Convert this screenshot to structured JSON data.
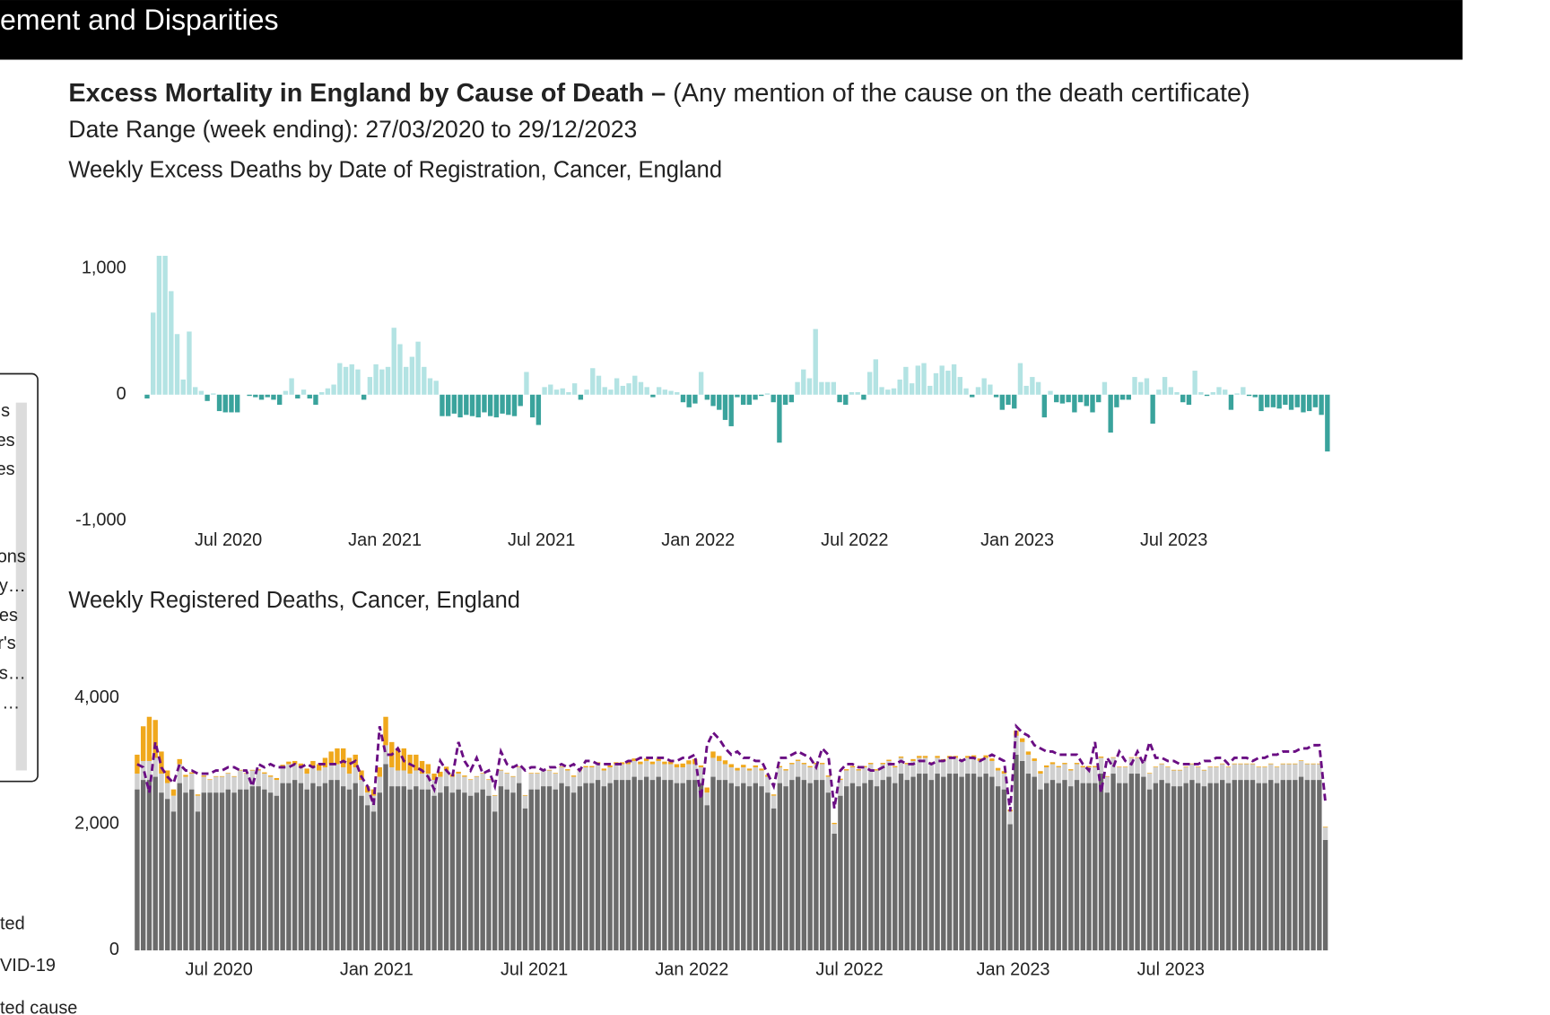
{
  "header": {
    "title": "ement and Disparities"
  },
  "report": {
    "title_bold": "Excess Mortality in England by Cause of Death –",
    "title_rest": "(Any mention of the cause on the death certificate)",
    "date_range": "Date Range (week ending): 27/03/2020 to 29/12/2023"
  },
  "sidebar": {
    "legend_fragments": [
      "s",
      "es",
      "es",
      "ons",
      "y…",
      "es",
      "r's",
      "s…",
      "…"
    ],
    "footer_fragments": [
      "ted",
      "VID-19",
      "ted cause"
    ]
  },
  "chart_data": [
    {
      "type": "bar",
      "title": "Weekly Excess Deaths by Date of Registration, Cancer, England",
      "color_positive": "#b3e3e3",
      "color_negative": "#3aa39c",
      "xlim": [
        0,
        197
      ],
      "xticks": [
        {
          "value": 14,
          "label": "Jul 2020"
        },
        {
          "value": 40,
          "label": "Jan 2021"
        },
        {
          "value": 66,
          "label": "Jul 2021"
        },
        {
          "value": 92,
          "label": "Jan 2022"
        },
        {
          "value": 118,
          "label": "Jul 2022"
        },
        {
          "value": 145,
          "label": "Jan 2023"
        },
        {
          "value": 171,
          "label": "Jul 2023"
        }
      ],
      "ylim": [
        -1000,
        1000
      ],
      "yticks": [
        {
          "value": -1000,
          "label": "-1,000"
        },
        0,
        {
          "value": 1000,
          "label": "1,000"
        }
      ],
      "values": [
        -30,
        650,
        1100,
        1100,
        820,
        480,
        120,
        500,
        60,
        30,
        -50,
        10,
        -130,
        -140,
        -140,
        -140,
        0,
        -10,
        -20,
        -40,
        -20,
        -40,
        -80,
        30,
        130,
        -30,
        40,
        -30,
        -80,
        20,
        50,
        80,
        250,
        220,
        240,
        200,
        -40,
        140,
        240,
        200,
        220,
        530,
        400,
        220,
        300,
        420,
        220,
        130,
        110,
        -170,
        -170,
        -150,
        -180,
        -160,
        -170,
        -180,
        -140,
        -170,
        -180,
        -150,
        -160,
        -170,
        -90,
        180,
        -180,
        -240,
        60,
        80,
        40,
        50,
        20,
        90,
        -40,
        40,
        210,
        150,
        60,
        40,
        130,
        70,
        90,
        150,
        100,
        60,
        -20,
        60,
        40,
        30,
        20,
        -60,
        -100,
        -70,
        180,
        -40,
        -90,
        -120,
        -200,
        -250,
        -20,
        -80,
        -80,
        -40,
        -10,
        10,
        -60,
        -380,
        -80,
        -60,
        100,
        200,
        130,
        520,
        100,
        100,
        100,
        -60,
        -80,
        20,
        20,
        -40,
        180,
        280,
        60,
        40,
        50,
        120,
        220,
        90,
        230,
        250,
        70,
        170,
        230,
        190,
        240,
        140,
        50,
        -20,
        60,
        130,
        80,
        -20,
        -120,
        -80,
        -110,
        250,
        70,
        140,
        100,
        -180,
        30,
        -60,
        -70,
        -60,
        -140,
        -60,
        -90,
        -140,
        -60,
        100,
        -300,
        -100,
        -40,
        -40,
        140,
        100,
        130,
        -230,
        40,
        140,
        60,
        20,
        -60,
        -80,
        190,
        20,
        -10,
        20,
        60,
        40,
        -120,
        10,
        60,
        -10,
        -20,
        -130,
        -100,
        -100,
        -110,
        -80,
        -120,
        -100,
        -140,
        -130,
        -100,
        -160,
        -450
      ]
    },
    {
      "type": "bar",
      "stacked": true,
      "title": "Weekly Registered Deaths, Cancer, England",
      "xlim": [
        0,
        197
      ],
      "xticks": [
        {
          "value": 14,
          "label": "Jul 2020"
        },
        {
          "value": 40,
          "label": "Jan 2021"
        },
        {
          "value": 66,
          "label": "Jul 2021"
        },
        {
          "value": 92,
          "label": "Jan 2022"
        },
        {
          "value": 118,
          "label": "Jul 2022"
        },
        {
          "value": 145,
          "label": "Jan 2023"
        },
        {
          "value": 171,
          "label": "Jul 2023"
        }
      ],
      "ylim": [
        0,
        4000
      ],
      "yticks": [
        0,
        {
          "value": 2000,
          "label": "2,000"
        },
        {
          "value": 4000,
          "label": "4,000"
        }
      ],
      "series": [
        {
          "color": "#6b6b6b",
          "values": [
            2550,
            2700,
            2700,
            2750,
            2500,
            2400,
            2200,
            2650,
            2500,
            2550,
            2200,
            2500,
            2500,
            2500,
            2500,
            2550,
            2500,
            2550,
            2550,
            2600,
            2600,
            2550,
            2500,
            2450,
            2650,
            2650,
            2700,
            2650,
            2550,
            2650,
            2600,
            2650,
            2700,
            2700,
            2600,
            2550,
            2650,
            2450,
            2300,
            2200,
            2500,
            2950,
            2600,
            2600,
            2600,
            2550,
            2600,
            2550,
            2550,
            2450,
            2500,
            2600,
            2500,
            2550,
            2500,
            2450,
            2500,
            2550,
            2450,
            2200,
            2600,
            2550,
            2500,
            2650,
            2250,
            2550,
            2550,
            2600,
            2600,
            2550,
            2650,
            2600,
            2500,
            2600,
            2650,
            2650,
            2700,
            2600,
            2650,
            2700,
            2700,
            2700,
            2750,
            2700,
            2750,
            2700,
            2750,
            2700,
            2700,
            2650,
            2650,
            2700,
            2700,
            2650,
            2300,
            2750,
            2700,
            2700,
            2650,
            2600,
            2650,
            2600,
            2650,
            2600,
            2500,
            2250,
            2650,
            2600,
            2700,
            2750,
            2700,
            2650,
            2700,
            2700,
            2500,
            1850,
            2450,
            2600,
            2650,
            2600,
            2650,
            2700,
            2600,
            2700,
            2750,
            2650,
            2800,
            2700,
            2750,
            2800,
            2800,
            2700,
            2800,
            2750,
            2800,
            2800,
            2750,
            2800,
            2800,
            2750,
            2800,
            2750,
            2600,
            2550,
            2000,
            3100,
            3000,
            2800,
            2750,
            2550,
            2650,
            2700,
            2650,
            2700,
            2600,
            2700,
            2650,
            2650,
            2650,
            2800,
            2500,
            2800,
            2650,
            2650,
            2800,
            2800,
            2750,
            2550,
            2650,
            2700,
            2650,
            2600,
            2600,
            2650,
            2700,
            2650,
            2600,
            2650,
            2650,
            2700,
            2650,
            2700,
            2700,
            2700,
            2700,
            2650,
            2650,
            2700,
            2650,
            2700,
            2700,
            2700,
            2750,
            2700,
            2700,
            2700,
            1750
          ]
        },
        {
          "color": "#d0d0d0",
          "values": [
            250,
            300,
            300,
            300,
            300,
            250,
            250,
            300,
            250,
            250,
            250,
            250,
            200,
            250,
            250,
            250,
            250,
            300,
            250,
            250,
            250,
            250,
            250,
            250,
            250,
            300,
            250,
            250,
            250,
            250,
            250,
            250,
            250,
            250,
            300,
            250,
            250,
            250,
            200,
            250,
            250,
            300,
            300,
            250,
            250,
            250,
            250,
            250,
            250,
            250,
            250,
            250,
            250,
            250,
            250,
            250,
            250,
            250,
            250,
            250,
            250,
            250,
            250,
            250,
            200,
            250,
            250,
            250,
            250,
            250,
            250,
            250,
            250,
            250,
            250,
            250,
            250,
            250,
            250,
            250,
            250,
            250,
            250,
            250,
            250,
            250,
            250,
            250,
            250,
            250,
            250,
            250,
            250,
            250,
            200,
            300,
            300,
            250,
            250,
            250,
            250,
            250,
            250,
            250,
            250,
            200,
            250,
            250,
            250,
            250,
            250,
            250,
            250,
            250,
            250,
            150,
            250,
            250,
            250,
            250,
            250,
            250,
            250,
            250,
            250,
            250,
            250,
            250,
            250,
            250,
            250,
            250,
            250,
            250,
            250,
            250,
            250,
            250,
            250,
            250,
            250,
            250,
            250,
            250,
            200,
            300,
            300,
            300,
            250,
            250,
            250,
            250,
            250,
            250,
            250,
            250,
            250,
            250,
            250,
            250,
            250,
            250,
            250,
            250,
            250,
            250,
            250,
            250,
            250,
            250,
            250,
            250,
            250,
            250,
            250,
            250,
            250,
            250,
            250,
            250,
            250,
            250,
            250,
            250,
            250,
            250,
            250,
            250,
            250,
            250,
            250,
            250,
            250,
            250,
            250,
            250,
            200
          ]
        },
        {
          "color": "#f0a81c",
          "values": [
            300,
            550,
            700,
            600,
            350,
            200,
            100,
            80,
            30,
            20,
            20,
            20,
            10,
            10,
            10,
            10,
            10,
            10,
            10,
            10,
            20,
            20,
            20,
            30,
            40,
            40,
            50,
            60,
            80,
            100,
            100,
            150,
            200,
            250,
            300,
            250,
            200,
            150,
            100,
            100,
            150,
            450,
            400,
            350,
            350,
            300,
            250,
            200,
            150,
            100,
            80,
            60,
            40,
            30,
            20,
            10,
            10,
            10,
            10,
            10,
            10,
            10,
            10,
            10,
            10,
            10,
            10,
            10,
            10,
            10,
            10,
            20,
            20,
            20,
            20,
            20,
            30,
            30,
            30,
            30,
            30,
            40,
            40,
            40,
            40,
            40,
            40,
            40,
            40,
            50,
            60,
            60,
            80,
            30,
            80,
            100,
            80,
            60,
            50,
            40,
            40,
            30,
            30,
            30,
            30,
            20,
            20,
            20,
            20,
            20,
            20,
            20,
            20,
            20,
            20,
            20,
            20,
            20,
            20,
            20,
            20,
            20,
            20,
            20,
            20,
            20,
            20,
            20,
            30,
            30,
            30,
            30,
            30,
            30,
            30,
            30,
            30,
            30,
            40,
            40,
            40,
            40,
            40,
            40,
            30,
            80,
            60,
            50,
            40,
            40,
            30,
            30,
            20,
            20,
            20,
            20,
            20,
            20,
            20,
            20,
            10,
            10,
            10,
            10,
            10,
            10,
            10,
            10,
            10,
            10,
            10,
            10,
            10,
            10,
            10,
            10,
            10,
            10,
            10,
            10,
            10,
            10,
            10,
            10,
            10,
            10,
            10,
            10,
            10,
            10,
            10,
            10,
            10,
            10,
            10,
            10,
            10
          ]
        },
        {
          "type": "line",
          "dash": true,
          "color": "#6a0d83",
          "values": [
            2950,
            2900,
            2500,
            3300,
            2900,
            2750,
            2650,
            2950,
            2850,
            2850,
            2800,
            2800,
            2800,
            2850,
            2850,
            2900,
            2900,
            2850,
            2850,
            2600,
            2950,
            2900,
            2950,
            2900,
            2900,
            2900,
            2950,
            2900,
            2950,
            2900,
            2950,
            2950,
            2950,
            2950,
            3000,
            2950,
            3000,
            2750,
            2600,
            2300,
            3550,
            3100,
            3100,
            3200,
            3000,
            2950,
            2900,
            2850,
            2750,
            2550,
            3000,
            2850,
            2750,
            3300,
            3000,
            2850,
            3050,
            2800,
            2850,
            2600,
            3150,
            2950,
            2900,
            2950,
            2850,
            2900,
            2900,
            2850,
            2900,
            2900,
            2950,
            2900,
            2950,
            2850,
            3000,
            3000,
            2950,
            2950,
            2950,
            2950,
            2950,
            3000,
            3000,
            3050,
            3050,
            3050,
            3050,
            3050,
            3000,
            3000,
            3050,
            3050,
            3100,
            2400,
            3250,
            3450,
            3350,
            3200,
            3100,
            3150,
            3050,
            3050,
            3000,
            3000,
            2800,
            2600,
            3050,
            3050,
            3100,
            3150,
            3100,
            3050,
            2900,
            3200,
            3100,
            2250,
            2850,
            2950,
            2950,
            2900,
            2900,
            2850,
            2850,
            2900,
            2950,
            2950,
            3000,
            2950,
            2950,
            3000,
            3000,
            2950,
            3000,
            3000,
            3050,
            3050,
            3000,
            3050,
            3050,
            3000,
            3050,
            3100,
            3050,
            3000,
            2200,
            3550,
            3450,
            3400,
            3250,
            3200,
            3150,
            3150,
            3100,
            3100,
            3100,
            3100,
            2950,
            2850,
            3300,
            2500,
            3050,
            2900,
            3150,
            3000,
            2950,
            3150,
            2950,
            3300,
            3050,
            3050,
            3000,
            3000,
            2950,
            2950,
            2950,
            2950,
            3000,
            3000,
            3050,
            3050,
            2950,
            3050,
            3050,
            3050,
            3000,
            3050,
            3050,
            3100,
            3100,
            3150,
            3150,
            3150,
            3200,
            3200,
            3250,
            3250,
            2350
          ]
        }
      ]
    }
  ]
}
